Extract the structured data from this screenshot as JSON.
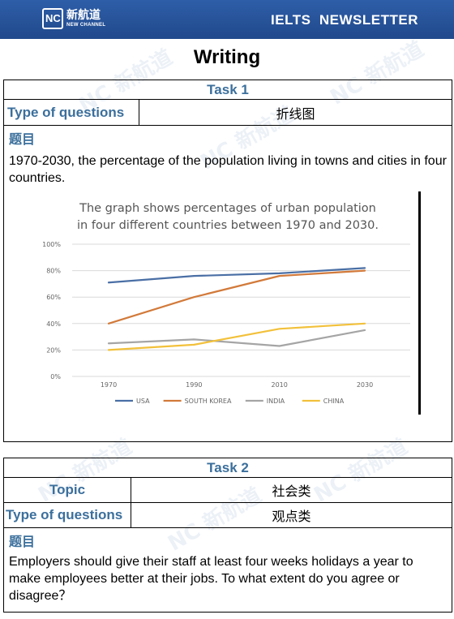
{
  "header": {
    "logo_mark": "NC",
    "logo_cn": "新航道",
    "logo_en": "NEW CHANNEL",
    "newsletter": "IELTS  NEWSLETTER"
  },
  "page_title": "Writing",
  "task1": {
    "heading": "Task 1",
    "type_label": "Type of questions",
    "type_value": "折线图",
    "prompt_label": "题目",
    "prompt": "1970-2030, the percentage of the population living in towns and cities in four countries."
  },
  "task2": {
    "heading": "Task 2",
    "topic_label": "Topic",
    "topic_value": "社会类",
    "type_label": "Type of questions",
    "type_value": "观点类",
    "prompt_label": "题目",
    "prompt": "Employers should give their staff at least four weeks holidays a year to make employees better at their jobs. To what extent do you agree or disagree？"
  },
  "chart_data": {
    "type": "line",
    "title": "The graph shows percentages of urban population in four different countries between 1970 and 2030.",
    "title_lines": [
      "The graph shows percentages of urban population",
      "in four different countries between 1970 and 2030."
    ],
    "categories": [
      "1970",
      "1990",
      "2010",
      "2030"
    ],
    "ylim": [
      0,
      100
    ],
    "yticks": [
      "0%",
      "20%",
      "40%",
      "60%",
      "80%",
      "100%"
    ],
    "grid": true,
    "legend": "bottom",
    "series": [
      {
        "name": "USA",
        "color": "#4a6fa5",
        "values": [
          71,
          76,
          78,
          82
        ]
      },
      {
        "name": "SOUTH KOREA",
        "color": "#d27a3a",
        "values": [
          40,
          60,
          76,
          80
        ]
      },
      {
        "name": "INDIA",
        "color": "#a5a5a5",
        "values": [
          25,
          28,
          23,
          35
        ]
      },
      {
        "name": "CHINA",
        "color": "#f2c13b",
        "values": [
          20,
          24,
          36,
          40
        ]
      }
    ]
  }
}
